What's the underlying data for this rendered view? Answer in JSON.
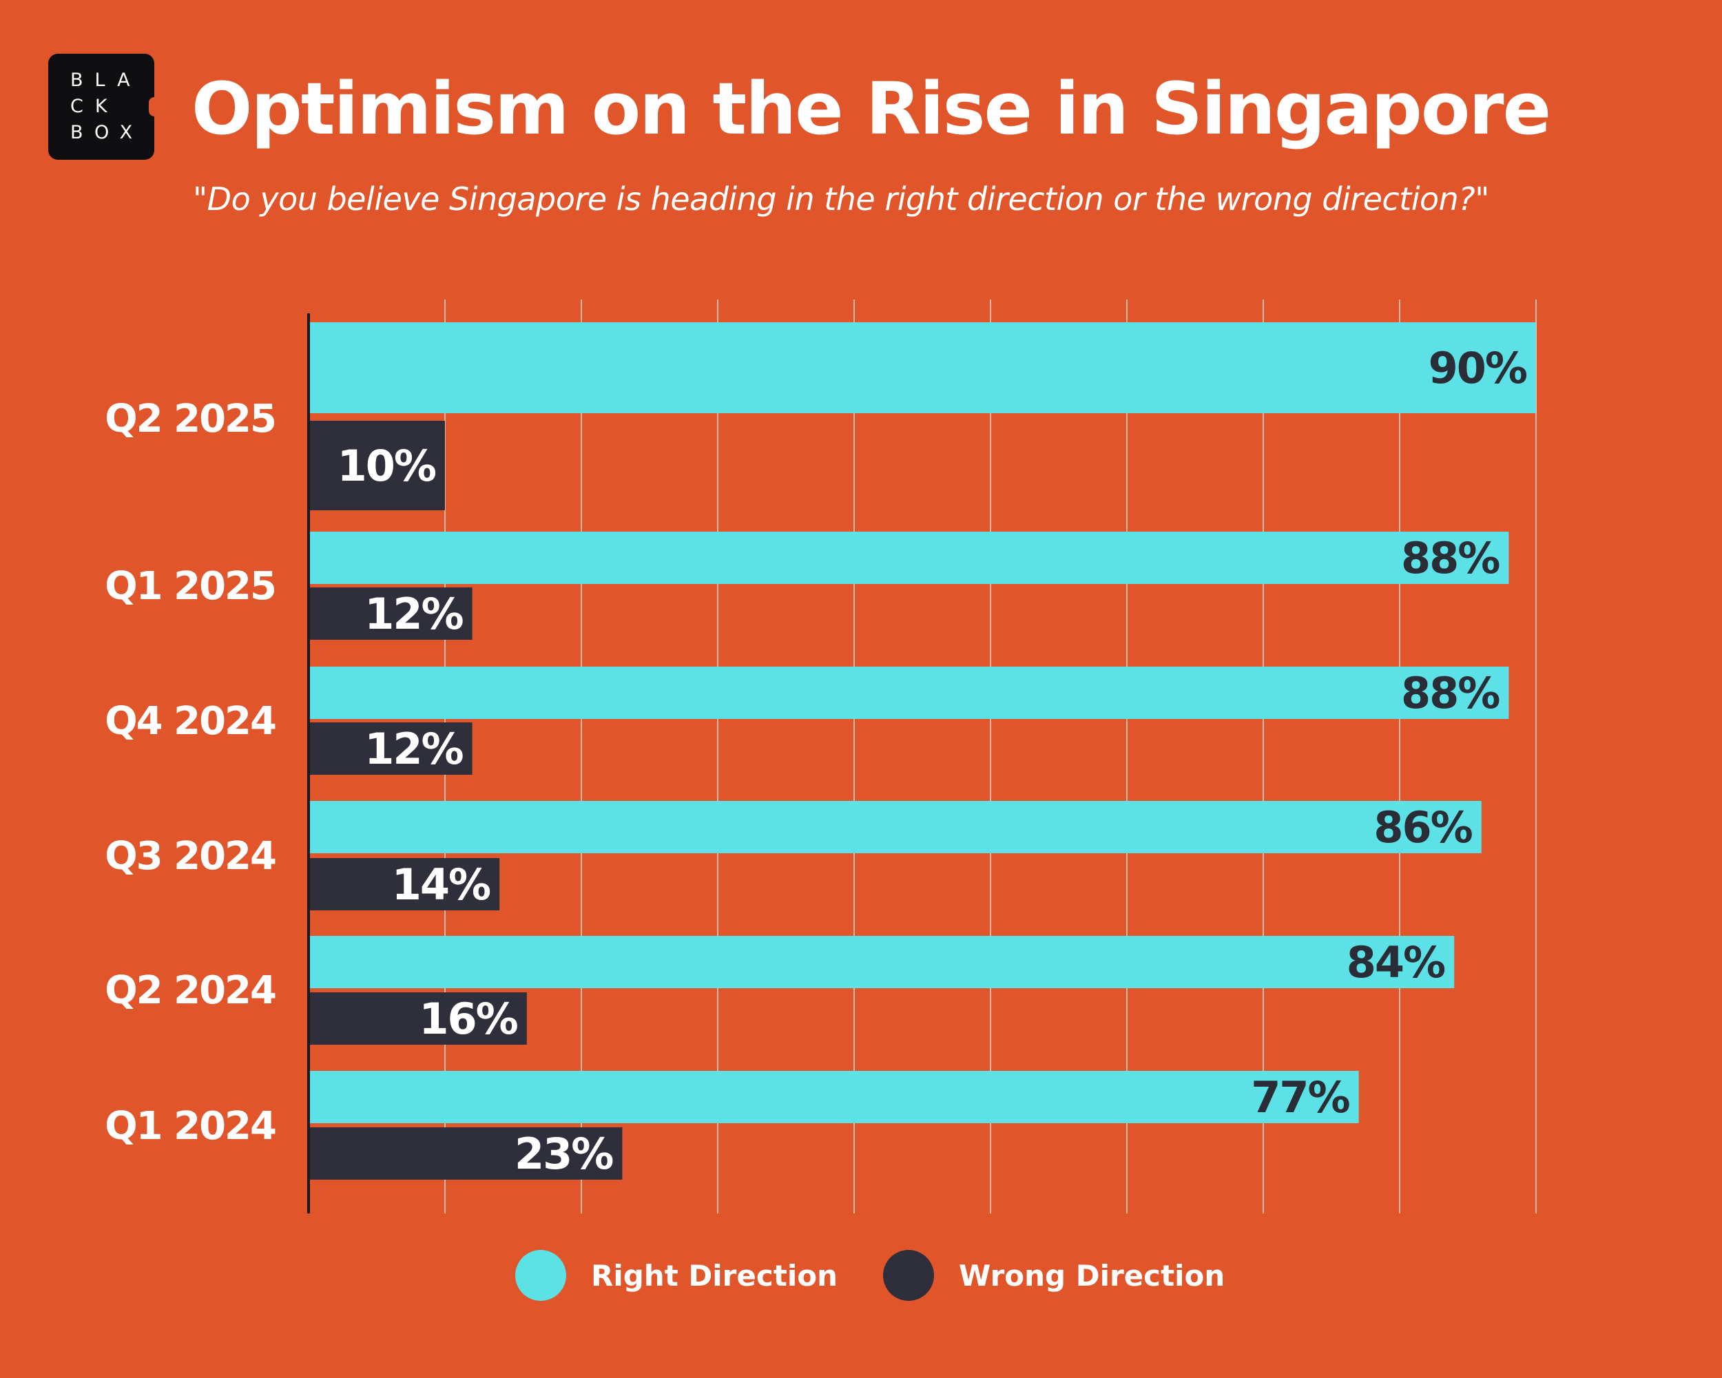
{
  "logo": {
    "lines": [
      "BLA",
      "CK",
      "BOX"
    ]
  },
  "title": "Optimism on the Rise in Singapore",
  "subtitle": "\"Do you believe Singapore is heading in the right direction or the wrong direction?\"",
  "colors": {
    "background": "#e0552a",
    "right_direction": "#5ce1e6",
    "wrong_direction": "#2e2f3b",
    "gridline": "#f5b9a3"
  },
  "chart_data": {
    "type": "bar",
    "orientation": "horizontal",
    "categories": [
      "Q2 2025",
      "Q1 2025",
      "Q4 2024",
      "Q3 2024",
      "Q2 2024",
      "Q1 2024"
    ],
    "series": [
      {
        "name": "Right Direction",
        "values": [
          90,
          88,
          88,
          86,
          84,
          77
        ],
        "labels": [
          "90%",
          "88%",
          "88%",
          "86%",
          "84%",
          "77%"
        ]
      },
      {
        "name": "Wrong Direction",
        "values": [
          10,
          12,
          12,
          14,
          16,
          23
        ],
        "labels": [
          "10%",
          "12%",
          "12%",
          "14%",
          "16%",
          "23%"
        ]
      }
    ],
    "xlim": [
      0,
      90
    ],
    "grid": true,
    "legend_position": "bottom"
  }
}
